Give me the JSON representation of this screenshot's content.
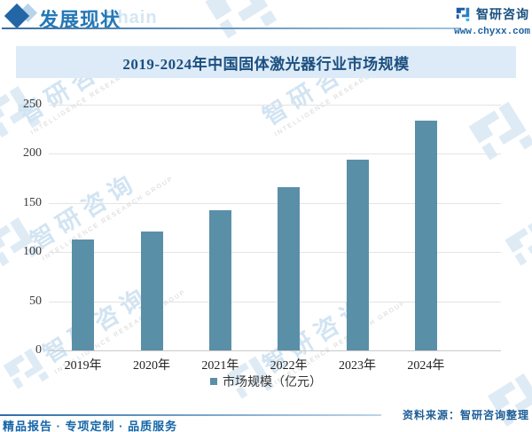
{
  "header": {
    "section_title": "发展现状",
    "watermark_text": "Chain",
    "brand_name": "智研咨询",
    "website": "www.chyxx.com"
  },
  "chart_data": {
    "type": "bar",
    "title": "2019-2024年中国固体激光器行业市场规模",
    "categories": [
      "2019年",
      "2020年",
      "2021年",
      "2022年",
      "2023年",
      "2024年"
    ],
    "series": [
      {
        "name": "市场规模（亿元）",
        "values": [
          113,
          121,
          143,
          166,
          194,
          234
        ]
      }
    ],
    "ylim": [
      0,
      250
    ],
    "yticks": [
      0,
      50,
      100,
      150,
      200,
      250
    ],
    "grid": true,
    "legend_position": "bottom",
    "bar_color": "#5a8fa8"
  },
  "legend": {
    "label": "市场规模（亿元）"
  },
  "footer": {
    "source": "资料来源：智研咨询整理",
    "tagline": "精品报告 · 专项定制 · 品质服务"
  },
  "watermarks": {
    "brand_cn": "智研咨询",
    "brand_en": "INTELLIGENCE RESEARCH GROUP"
  },
  "colors": {
    "bar": "#5a8fa8",
    "banner_bg": "#dcebf7",
    "title_text": "#1c4f80",
    "header_accent": "#2478b6"
  }
}
